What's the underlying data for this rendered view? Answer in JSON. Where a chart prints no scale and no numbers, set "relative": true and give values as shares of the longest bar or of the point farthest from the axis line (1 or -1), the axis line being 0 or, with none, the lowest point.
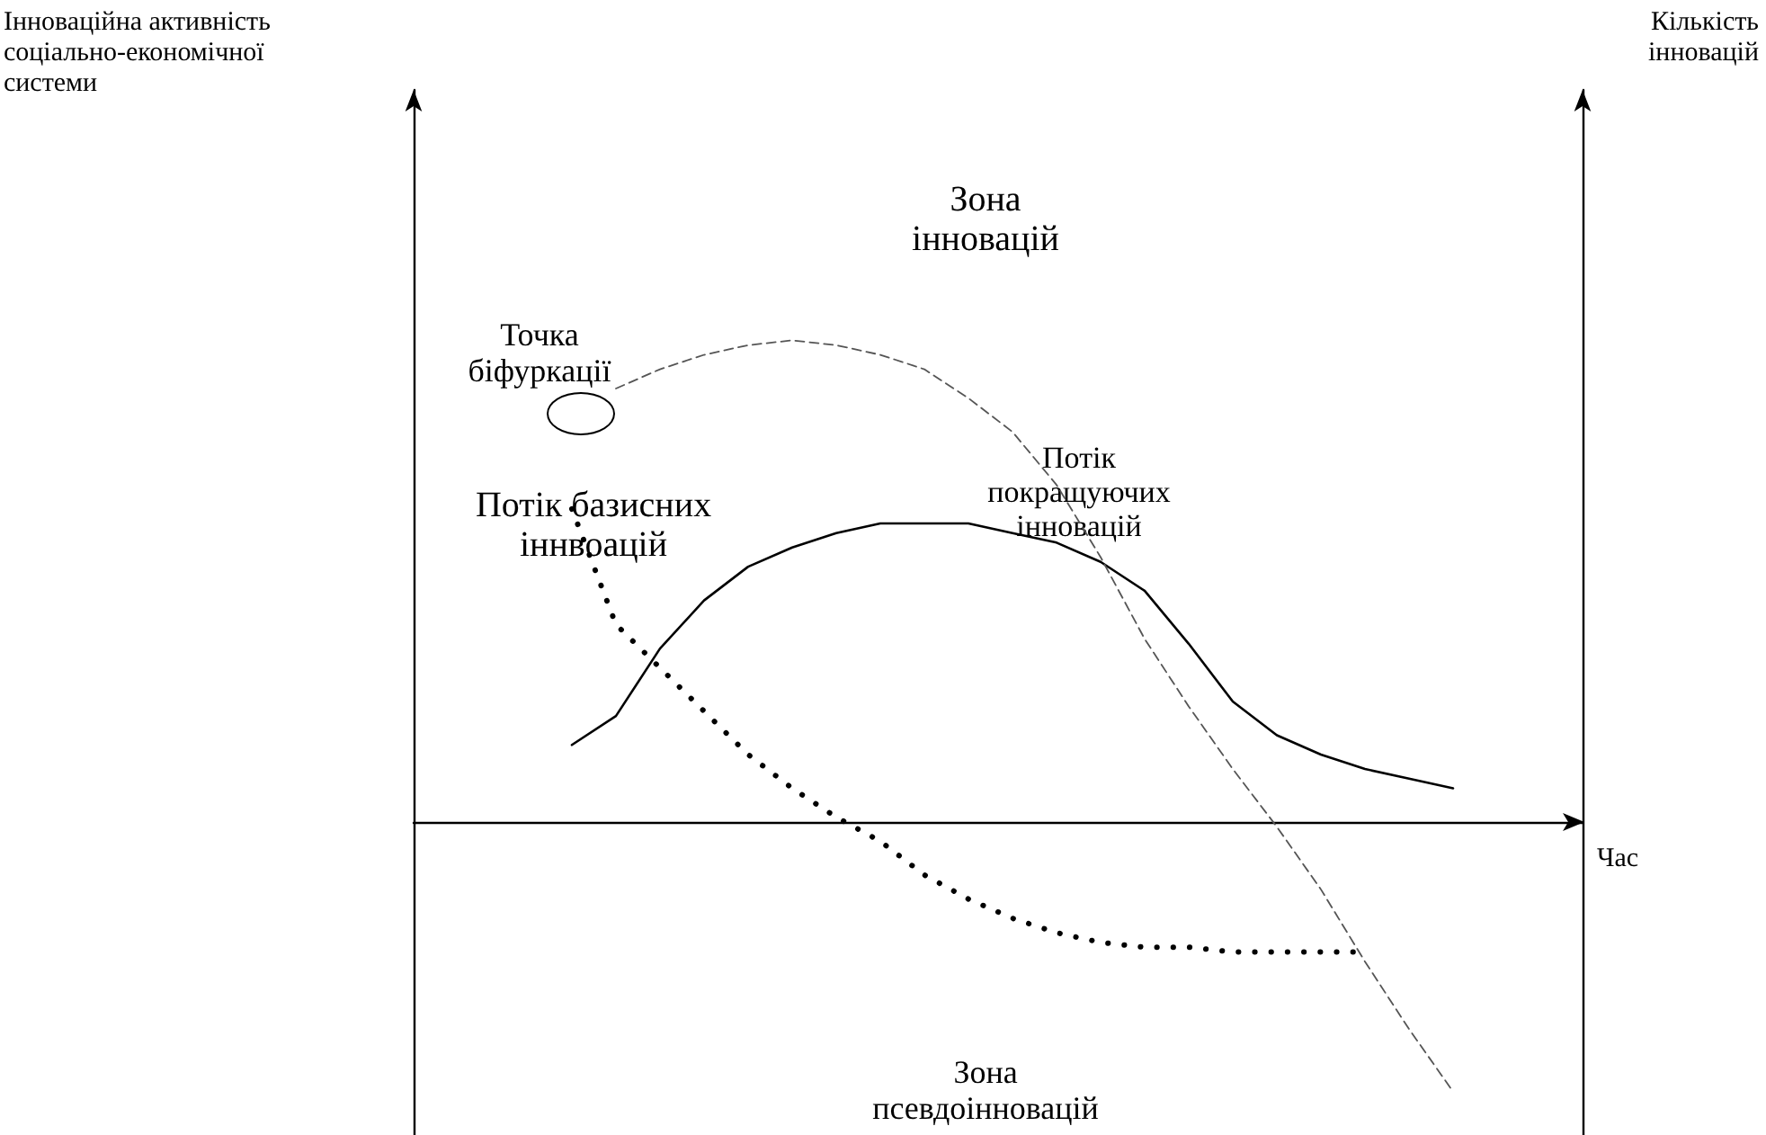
{
  "chart_data": {
    "type": "line",
    "relative": true,
    "xlabel": "Час",
    "categories": [
      null,
      null,
      null,
      null,
      null,
      null,
      null,
      null,
      null,
      null,
      null,
      null,
      null,
      null,
      null,
      null,
      null,
      null,
      null,
      null,
      null
    ],
    "series": [
      {
        "color": "#000000",
        "line_style": "solid",
        "values": [
          0.16,
          0.22,
          0.36,
          0.46,
          0.53,
          0.57,
          0.6,
          0.62,
          0.62,
          0.62,
          0.6,
          0.58,
          0.54,
          0.48,
          0.37,
          0.25,
          0.18,
          0.14,
          0.11,
          0.09,
          0.07
        ]
      },
      {
        "color": "#555555",
        "line_style": "dashed",
        "values": [
          null,
          0.9,
          0.94,
          0.97,
          0.99,
          1.0,
          0.99,
          0.97,
          0.94,
          0.88,
          0.81,
          0.7,
          0.55,
          0.38,
          0.24,
          0.11,
          -0.01,
          -0.14,
          -0.29,
          -0.43,
          -0.56
        ]
      },
      {
        "color": "#000000",
        "line_style": "dotted",
        "values": [
          0.65,
          0.41,
          0.32,
          0.23,
          0.14,
          0.07,
          0.01,
          -0.04,
          -0.11,
          -0.16,
          -0.2,
          -0.23,
          -0.25,
          -0.26,
          -0.26,
          -0.27,
          -0.27,
          -0.27,
          -0.27,
          null,
          null
        ]
      }
    ],
    "annotations": [
      "Зона\nінновацій",
      "Точка\nбіфуркації",
      "Потік\nпокращуючих\nінновацій",
      "Потік базисних\nіннвоацій",
      "Зона\nпсевдоінновацій",
      "Інноваційна активність\nсоціально-економічної\nсистеми",
      "Кількість\nінновацій"
    ],
    "marker": "none",
    "grid": false
  }
}
